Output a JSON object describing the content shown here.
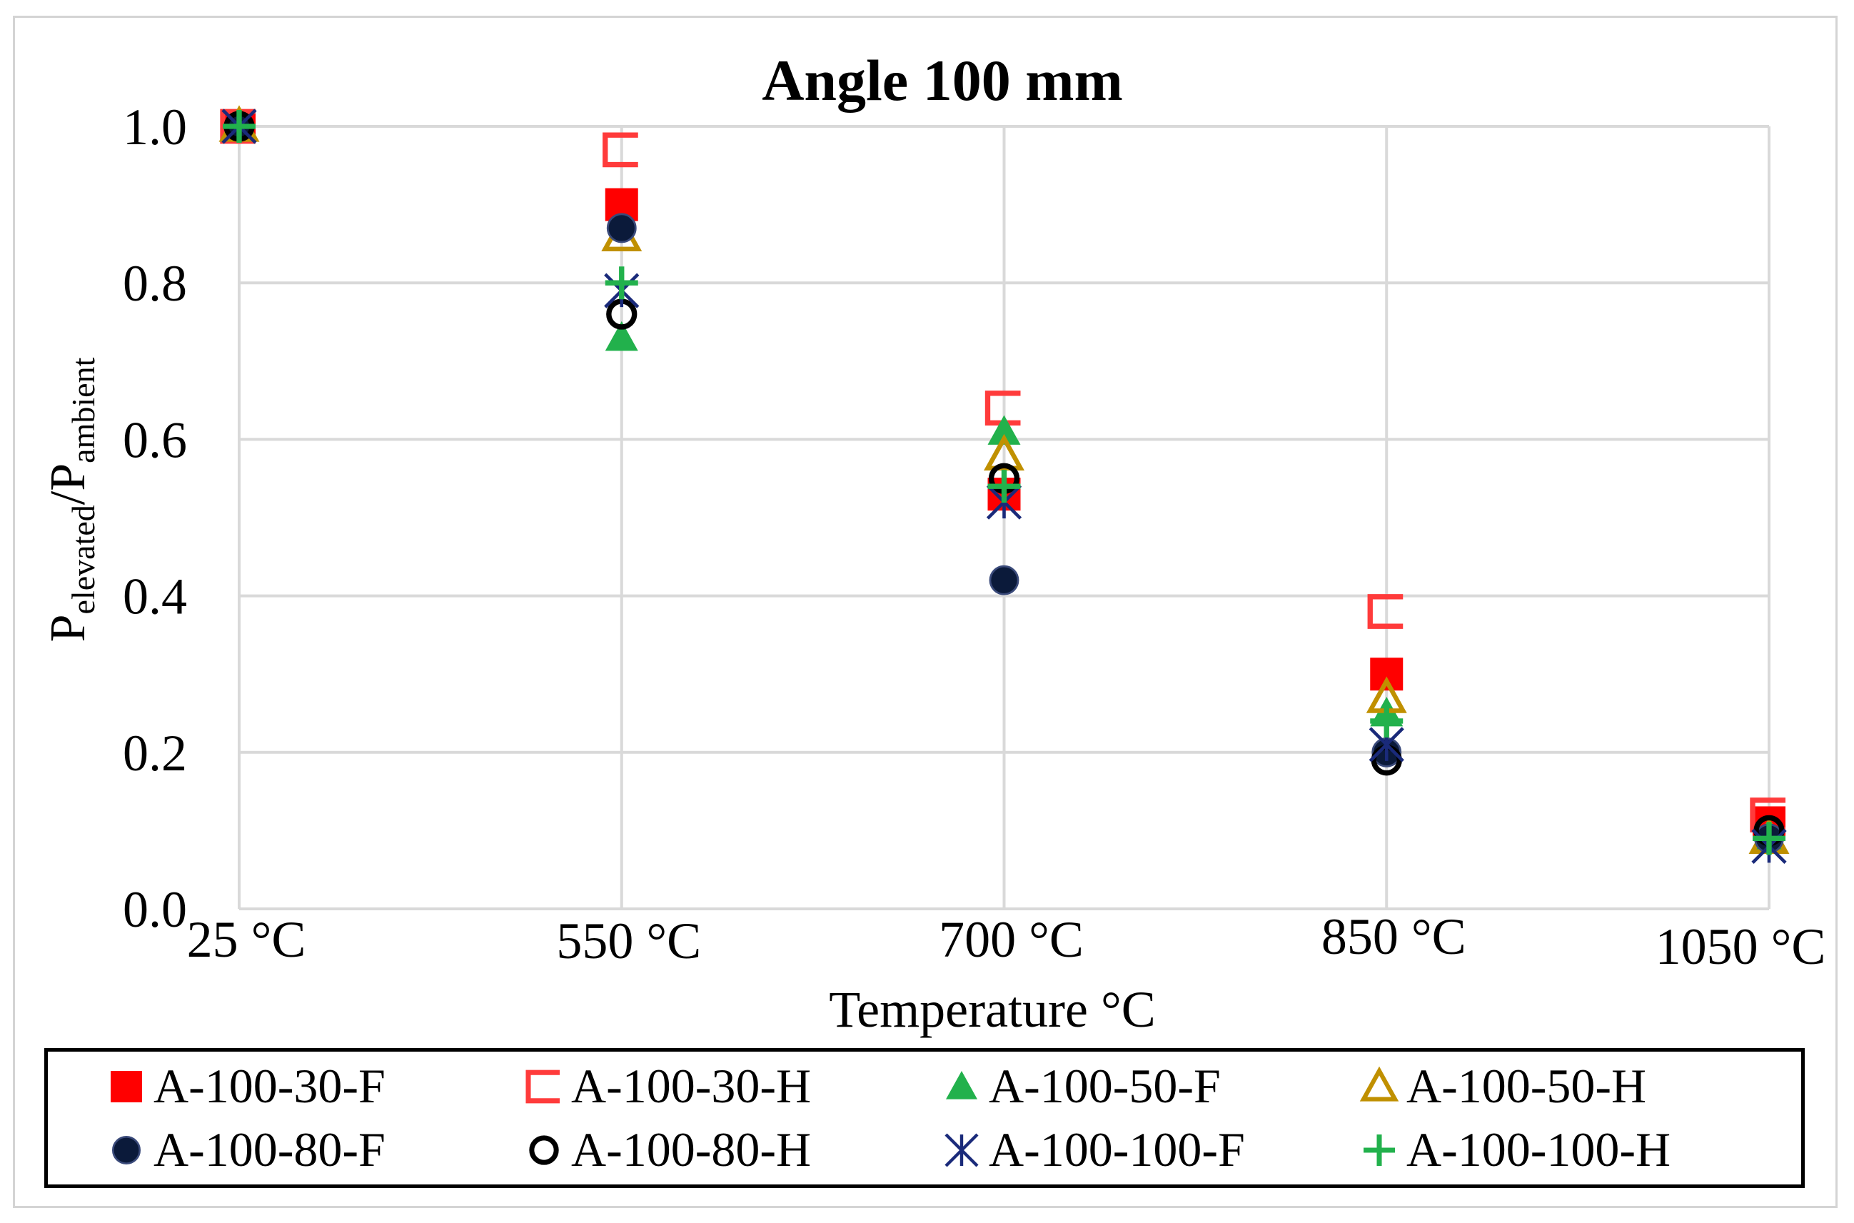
{
  "chart_data": {
    "type": "scatter",
    "title": "Angle 100 mm",
    "xlabel": "Temperature °C",
    "ylabel": {
      "base": "P",
      "sub1": "elevated",
      "sep": "/P",
      "sub2": "ambient"
    },
    "categories": [
      "25 °C",
      "550 °C",
      "700 °C",
      "850 °C",
      "1050 °C"
    ],
    "ylim": [
      0.0,
      1.0
    ],
    "yticks": [
      "0.0",
      "0.2",
      "0.4",
      "0.6",
      "0.8",
      "1.0"
    ],
    "grid": true,
    "legend_position": "bottom",
    "series": [
      {
        "name": "A-100-30-F",
        "marker": "square-filled",
        "color": "#ff0000",
        "values": [
          1.0,
          0.9,
          0.53,
          0.3,
          0.11
        ]
      },
      {
        "name": "A-100-30-H",
        "marker": "bracket-open",
        "color": "#ff3b3b",
        "values": [
          1.0,
          0.97,
          0.64,
          0.38,
          0.12
        ]
      },
      {
        "name": "A-100-50-F",
        "marker": "triangle-filled",
        "color": "#22b14c",
        "values": [
          1.0,
          0.73,
          0.61,
          0.25,
          0.09
        ]
      },
      {
        "name": "A-100-50-H",
        "marker": "triangle-open",
        "color": "#c09000",
        "values": [
          1.0,
          0.86,
          0.58,
          0.27,
          0.09
        ]
      },
      {
        "name": "A-100-80-F",
        "marker": "circle-filled",
        "color": "#0b1a3a",
        "values": [
          1.0,
          0.87,
          0.42,
          0.2,
          0.09
        ]
      },
      {
        "name": "A-100-80-H",
        "marker": "circle-open",
        "color": "#000000",
        "values": [
          1.0,
          0.76,
          0.55,
          0.19,
          0.1
        ]
      },
      {
        "name": "A-100-100-F",
        "marker": "asterisk",
        "color": "#1a2a7a",
        "values": [
          1.0,
          0.79,
          0.52,
          0.21,
          0.08
        ]
      },
      {
        "name": "A-100-100-H",
        "marker": "plus",
        "color": "#22b14c",
        "values": [
          1.0,
          0.8,
          0.54,
          0.24,
          0.09
        ]
      }
    ]
  }
}
